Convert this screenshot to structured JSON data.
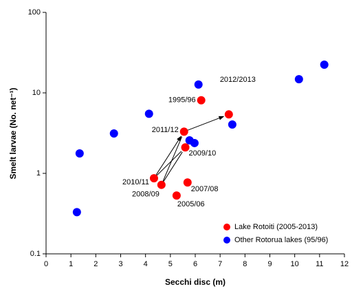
{
  "chart_data": {
    "type": "scatter",
    "x_label": "Secchi disc (m)",
    "y_label": "Smelt larvae (No. net⁻¹)",
    "xlim": [
      0,
      12
    ],
    "xticks": [
      0,
      1,
      2,
      3,
      4,
      5,
      6,
      7,
      8,
      9,
      10,
      11,
      12
    ],
    "ylim": [
      0.1,
      100
    ],
    "yticks": [
      0.1,
      1,
      10,
      100
    ],
    "y_scale": "log",
    "legend": "lower right",
    "series": [
      {
        "name": "Lake Rotoiti (2005-2013)",
        "color": "#ff0000",
        "x": [
          6.24,
          7.35,
          5.55,
          5.6,
          4.34,
          4.64,
          5.69,
          5.25
        ],
        "values": [
          8.1,
          5.4,
          3.3,
          2.1,
          0.87,
          0.72,
          0.77,
          0.53
        ],
        "labels": [
          "1995/96",
          "2012/2013",
          "2011/12",
          "2009/10",
          "2010/11",
          "2008/09",
          "2007/08",
          "2005/06"
        ]
      },
      {
        "name": "Other Rotorua lakes (95/96)",
        "color": "#0000ff",
        "x": [
          1.24,
          1.35,
          2.73,
          4.14,
          5.77,
          5.97,
          6.13,
          7.49,
          10.17,
          11.19
        ],
        "values": [
          0.33,
          1.77,
          3.13,
          5.5,
          2.57,
          2.38,
          12.7,
          4.04,
          14.8,
          22.4
        ]
      }
    ]
  }
}
